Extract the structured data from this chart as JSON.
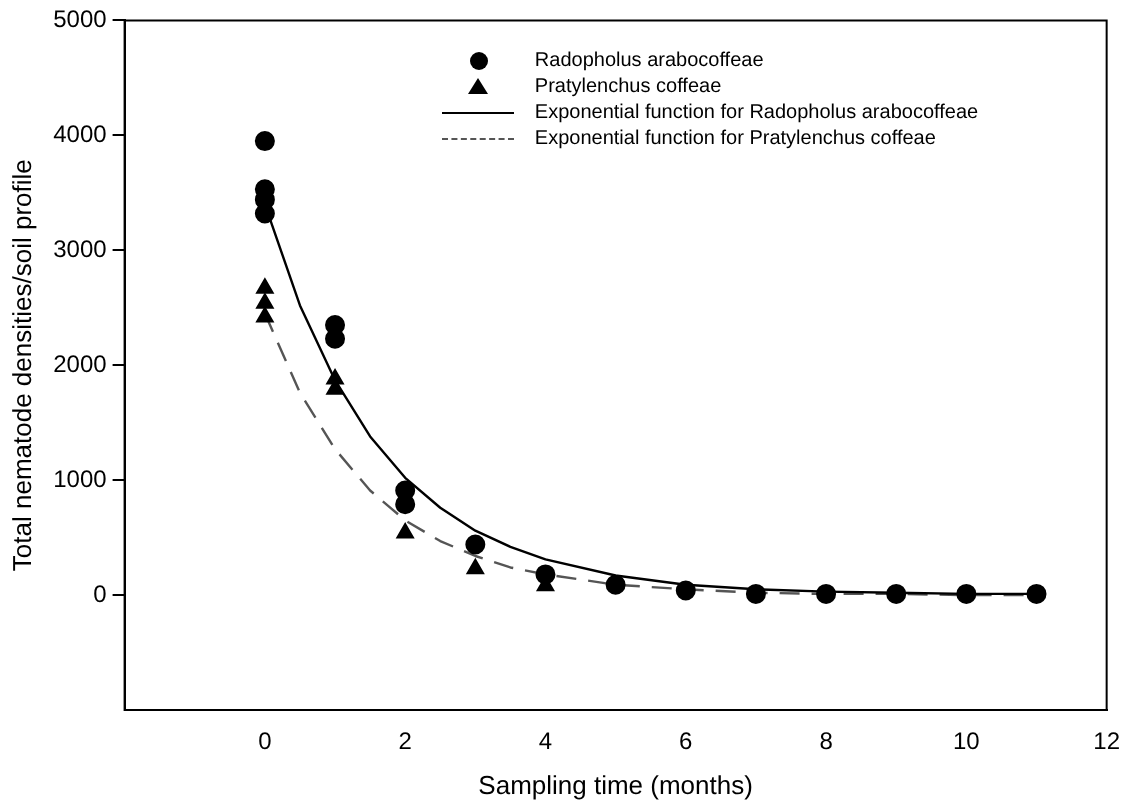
{
  "chart_data": {
    "type": "scatter",
    "xlabel": "Sampling time (months)",
    "ylabel": "Total nematode densities/soil profile",
    "xlim": [
      -2,
      12
    ],
    "xticks": [
      0,
      2,
      4,
      6,
      8,
      10,
      12
    ],
    "ylim": [
      -1000,
      5000
    ],
    "yticks": [
      0,
      1000,
      2000,
      3000,
      4000,
      5000
    ],
    "grid": false,
    "legend": "top right",
    "series": [
      {
        "name": "Radopholus arabocoffeae",
        "type": "scatter",
        "marker": "circle",
        "color": "#000000",
        "x": [
          0,
          0,
          0,
          0,
          1,
          1,
          2,
          2,
          3,
          4,
          5,
          6,
          7,
          8,
          9,
          10,
          11
        ],
        "values": [
          3950,
          3530,
          3440,
          3320,
          2350,
          2230,
          910,
          790,
          440,
          180,
          90,
          40,
          10,
          10,
          10,
          10,
          10
        ]
      },
      {
        "name": "Pratylenchus coffeae",
        "type": "scatter",
        "marker": "triangle",
        "color": "#000000",
        "x": [
          0,
          0,
          0,
          1,
          1,
          2,
          3,
          4
        ],
        "values": [
          2670,
          2540,
          2420,
          1880,
          1790,
          540,
          230,
          80
        ]
      },
      {
        "name": "Exponential function for Radopholus arabocoffeae",
        "type": "line",
        "marker": "none",
        "line_style": "solid",
        "color": "#000000",
        "x": [
          0,
          0.5,
          1,
          1.5,
          2,
          2.5,
          3,
          3.5,
          4,
          5,
          6,
          7,
          8,
          9,
          10,
          11
        ],
        "values": [
          3400,
          2520,
          1870,
          1380,
          1020,
          760,
          560,
          420,
          310,
          170,
          90,
          50,
          30,
          20,
          10,
          10
        ]
      },
      {
        "name": "Exponential function for Pratylenchus coffeae",
        "type": "line",
        "marker": "none",
        "line_style": "dashed",
        "color": "#555555",
        "x": [
          0,
          0.5,
          1,
          1.5,
          2,
          2.5,
          3,
          3.5,
          4,
          5,
          6,
          7,
          8,
          9,
          10,
          11
        ],
        "values": [
          2450,
          1760,
          1270,
          910,
          650,
          470,
          340,
          240,
          180,
          90,
          50,
          20,
          10,
          10,
          0,
          0
        ]
      }
    ]
  }
}
